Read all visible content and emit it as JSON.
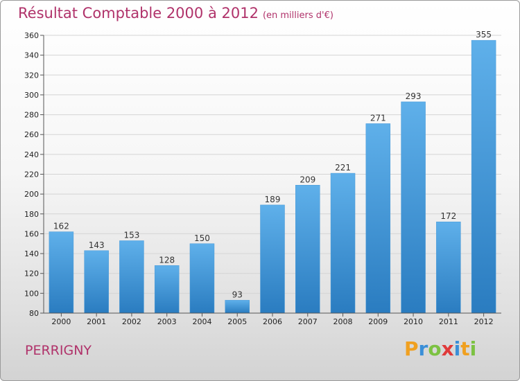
{
  "title": "Résultat Comptable 2000 à 2012",
  "subtitle": "(en milliers d'€)",
  "town": "PERRIGNY",
  "logo": {
    "letters": [
      "P",
      "r",
      "o",
      "x",
      "i",
      "t",
      "i"
    ],
    "colors": [
      "#f0a020",
      "#3a8fd8",
      "#7cc242",
      "#e03a3a",
      "#3a8fd8",
      "#f0a020",
      "#7cc242"
    ]
  },
  "colors": {
    "bar_top": "#5fb0ea",
    "bar_bottom": "#2a7cc0",
    "title": "#b0326a"
  },
  "chart_data": {
    "type": "bar",
    "title": "Résultat Comptable 2000 à 2012",
    "subtitle": "(en milliers d'€)",
    "categories": [
      "2000",
      "2001",
      "2002",
      "2003",
      "2004",
      "2005",
      "2006",
      "2007",
      "2008",
      "2009",
      "2010",
      "2011",
      "2012"
    ],
    "values": [
      162,
      143,
      153,
      128,
      150,
      93,
      189,
      209,
      221,
      271,
      293,
      172,
      355
    ],
    "ylim": [
      80,
      360
    ],
    "yticks": [
      80,
      100,
      120,
      140,
      160,
      180,
      200,
      220,
      240,
      260,
      280,
      300,
      320,
      340,
      360
    ],
    "grid": true,
    "xlabel": "",
    "ylabel": ""
  }
}
